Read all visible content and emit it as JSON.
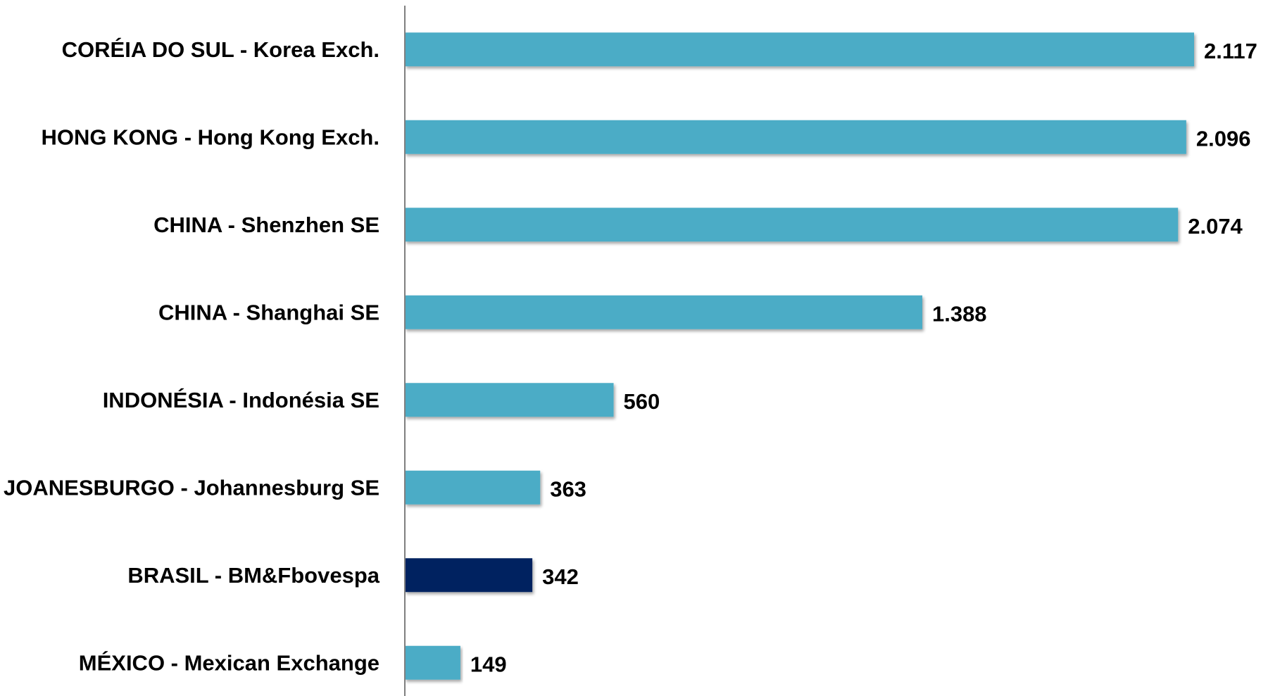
{
  "chart_data": {
    "type": "bar",
    "orientation": "horizontal",
    "categories": [
      "CORÉIA DO SUL - Korea Exch.",
      "HONG KONG - Hong Kong Exch.",
      "CHINA - Shenzhen SE",
      "CHINA - Shanghai SE",
      "INDONÉSIA - Indonésia SE",
      "JOANESBURGO - Johannesburg SE",
      "BRASIL - BM&Fbovespa",
      "MÉXICO - Mexican Exchange"
    ],
    "values": [
      2117,
      2096,
      2074,
      1388,
      560,
      363,
      342,
      149
    ],
    "value_labels": [
      "2.117",
      "2.096",
      "2.074",
      "1.388",
      "560",
      "363",
      "342",
      "149"
    ],
    "highlight_index": 6,
    "colors": {
      "bar": "#4BACC6",
      "highlight": "#002060",
      "axis": "#7F7F7F"
    },
    "title": "",
    "xlabel": "",
    "ylabel": "",
    "xlim": [
      0,
      2117
    ],
    "grid": false,
    "legend": "none"
  }
}
